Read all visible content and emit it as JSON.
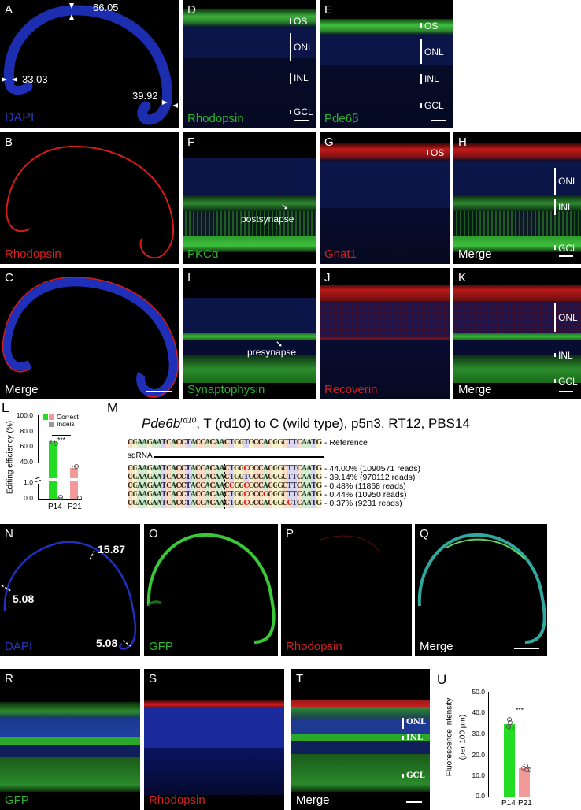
{
  "panels": {
    "A": {
      "label": "A",
      "stain": "DAPI",
      "measurements": [
        "66.05",
        "33.03",
        "39.92"
      ]
    },
    "B": {
      "label": "B",
      "stain": "Rhodopsin"
    },
    "C": {
      "label": "C",
      "stain": "Merge"
    },
    "D": {
      "label": "D",
      "stain": "Rhodopsin",
      "layers": [
        "OS",
        "ONL",
        "INL",
        "GCL"
      ]
    },
    "E": {
      "label": "E",
      "stain": "Pde6β",
      "layers": [
        "OS",
        "ONL",
        "INL",
        "GCL"
      ]
    },
    "F": {
      "label": "F",
      "stain": "PKCα",
      "annotation": "postsynapse"
    },
    "G": {
      "label": "G",
      "stain": "Gnat1",
      "layers": [
        "OS"
      ]
    },
    "H": {
      "label": "H",
      "stain": "Merge",
      "layers": [
        "ONL",
        "INL",
        "GCL"
      ]
    },
    "I": {
      "label": "I",
      "stain": "Synaptophysin",
      "annotation": "presynapse"
    },
    "J": {
      "label": "J",
      "stain": "Recoverin"
    },
    "K": {
      "label": "K",
      "stain": "Merge",
      "layers": [
        "ONL",
        "INL",
        "GCL"
      ]
    },
    "N": {
      "label": "N",
      "stain": "DAPI",
      "measurements": [
        "15.87",
        "5.08",
        "5.08"
      ]
    },
    "O": {
      "label": "O",
      "stain": "GFP"
    },
    "P": {
      "label": "P",
      "stain": "Rhodopsin"
    },
    "Q": {
      "label": "Q",
      "stain": "Merge"
    },
    "R": {
      "label": "R",
      "stain": "GFP"
    },
    "S": {
      "label": "S",
      "stain": "Rhodopsin"
    },
    "T": {
      "label": "T",
      "stain": "Merge",
      "layers": [
        "ONL",
        "INL",
        "GCL"
      ]
    }
  },
  "sequence": {
    "label": "M",
    "title_gene": "Pde6b",
    "title_sup": "rd10",
    "title_rest": ", T (rd10) to C (wild type), p5n3, RT12, PBS14",
    "reference": "CGAAGAATCACCTACCACAACTGGTGCCACGGCTTCAATG",
    "reference_label": "- Reference",
    "sgrna_label": "sgRNA",
    "reads": [
      {
        "seq": "CGAAGAATCACCTACCACAACTGGCGCCACGGCTTCAATG",
        "note": "- 44.00% (1090571 reads)"
      },
      {
        "seq": "CGAAGAATCACCTACCACAACTGGTGCCACGGCTTCAATG",
        "note": "- 39.14% (970112 reads)"
      },
      {
        "seq": "CGAAGAATCACCTACCACAACCGGCGCCACGGCTTCAATG",
        "note": "- 0.48% (11868 reads)"
      },
      {
        "seq": "CGAAGAATCACCTACCACAACTGGCGCCGCGGCTTCAATG",
        "note": "- 0.44% (10950 reads)"
      },
      {
        "seq": "CGAAGAATCACCTACCACAACTGGCGCCACGGCCTCAATG",
        "note": "- 0.37% (9231 reads)"
      }
    ]
  },
  "chart_data": [
    {
      "panel": "L",
      "type": "bar",
      "title": "",
      "xlabel": "",
      "ylabel": "Editing efficiency (%)",
      "categories": [
        "P14",
        "P21"
      ],
      "series": [
        {
          "name": "Correct",
          "values": [
            76,
            42
          ],
          "colors": [
            "#22dd22",
            "#f29a9a"
          ]
        },
        {
          "name": "Indels",
          "values": [
            1.0,
            0.3
          ],
          "color": "#999999"
        }
      ],
      "yticks": [
        "0.0",
        "1.0",
        "40.0",
        "60.0",
        "80.0",
        "100.0"
      ],
      "ylim": [
        0,
        100
      ],
      "axis_break": [
        1.0,
        40.0
      ],
      "legend": [
        "Correct",
        "Indels"
      ],
      "legend_position": "top-right",
      "annotation": "***"
    },
    {
      "panel": "U",
      "type": "bar",
      "title": "",
      "xlabel": "",
      "ylabel": "Fluorescence intensity (per 100 μm)",
      "categories": [
        "P14",
        "P21"
      ],
      "values": [
        34.5,
        13.5
      ],
      "colors": [
        "#22dd22",
        "#f29a9a"
      ],
      "points": [
        [
          32.5,
          33.5,
          35,
          36.5
        ],
        [
          13,
          13.5,
          14,
          15
        ]
      ],
      "yticks": [
        "0.0",
        "10.0",
        "20.0",
        "30.0",
        "40.0",
        "50.0"
      ],
      "ylim": [
        0,
        50
      ],
      "annotation": "***"
    }
  ],
  "chartL": {
    "label": "L",
    "ylabel": "Editing efficiency (%)",
    "ticks": [
      "100.0",
      "80.0",
      "60.0",
      "40.0",
      "1.0",
      "0.0"
    ],
    "legend": [
      "Correct",
      "Indels"
    ],
    "sig": "***",
    "x": [
      "P14",
      "P21"
    ]
  },
  "chartU": {
    "label": "U",
    "ylabel1": "Fluorescence intensity",
    "ylabel2": "(per 100 μm)",
    "ticks": [
      "50.0",
      "40.0",
      "30.0",
      "20.0",
      "10.0",
      "0.0"
    ],
    "sig": "***",
    "x": [
      "P14",
      "P21"
    ]
  }
}
